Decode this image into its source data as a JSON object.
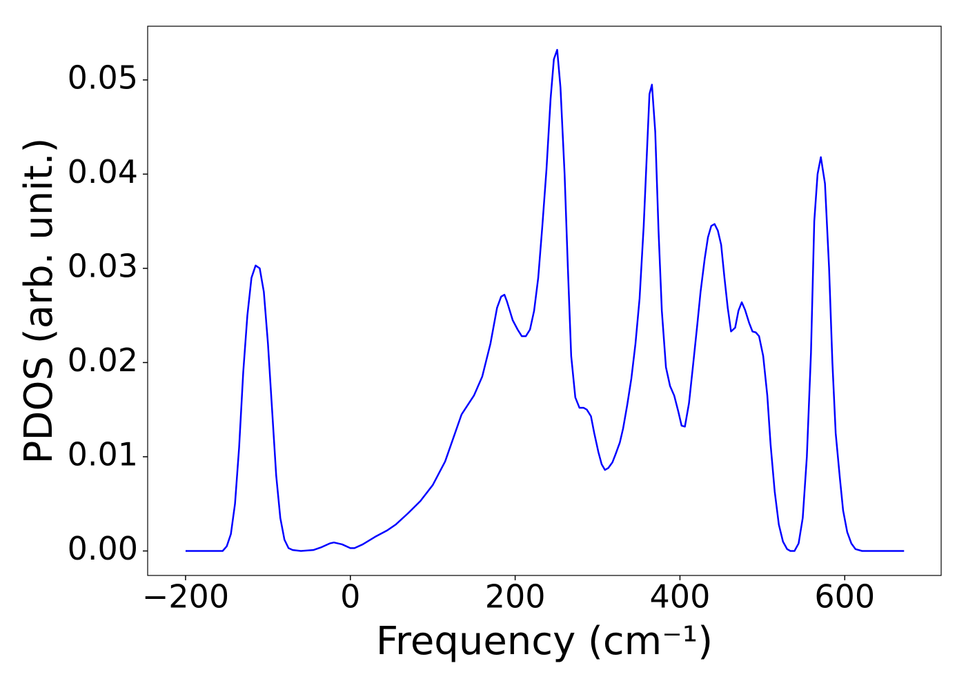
{
  "chart_data": {
    "type": "line",
    "xlabel": "Frequency (cm⁻¹)",
    "ylabel": "PDOS (arb. unit.)",
    "xlim": [
      -246,
      717
    ],
    "ylim": [
      -0.0026,
      0.0557
    ],
    "xticks": [
      {
        "value": -200,
        "label": "−200"
      },
      0,
      200,
      400,
      600
    ],
    "yticks": [
      {
        "value": 0,
        "label": "0.00"
      },
      {
        "value": 0.01,
        "label": "0.01"
      },
      {
        "value": 0.02,
        "label": "0.02"
      },
      {
        "value": 0.03,
        "label": "0.03"
      },
      {
        "value": 0.04,
        "label": "0.04"
      },
      {
        "value": 0.05,
        "label": "0.05"
      }
    ],
    "grid": false,
    "series": [
      {
        "color": "#0000ff",
        "x": [
          -200,
          -155,
          -150,
          -145,
          -140,
          -135,
          -130,
          -125,
          -120,
          -115,
          -110,
          -105,
          -100,
          -95,
          -90,
          -85,
          -80,
          -75,
          -70,
          -60,
          -45,
          -35,
          -25,
          -20,
          -10,
          0,
          5,
          15,
          30,
          45,
          55,
          70,
          85,
          100,
          115,
          125,
          135,
          150,
          160,
          170,
          178,
          183,
          187,
          190,
          197,
          203,
          208,
          213,
          218,
          223,
          228,
          233,
          238,
          243,
          247,
          251,
          255,
          260,
          264,
          268,
          273,
          278,
          283,
          287,
          292,
          296,
          301,
          305,
          309,
          313,
          318,
          322,
          327,
          331,
          336,
          341,
          346,
          351,
          356,
          360,
          363,
          366,
          370,
          374,
          378,
          383,
          388,
          393,
          398,
          402,
          406,
          411,
          416,
          421,
          425,
          430,
          434,
          438,
          442,
          446,
          450,
          454,
          458,
          462,
          467,
          471,
          475,
          479,
          484,
          488,
          492,
          496,
          501,
          506,
          510,
          515,
          520,
          525,
          530,
          534,
          539,
          544,
          549,
          554,
          559,
          563,
          567,
          571,
          576,
          581,
          585,
          589,
          594,
          598,
          603,
          608,
          613,
          621,
          672
        ],
        "values": [
          0,
          0,
          0.0005,
          0.0018,
          0.005,
          0.011,
          0.019,
          0.025,
          0.029,
          0.0303,
          0.03,
          0.0275,
          0.022,
          0.015,
          0.008,
          0.0035,
          0.0012,
          0.0003,
          0.0001,
          0,
          0.0001,
          0.0004,
          0.0008,
          0.0009,
          0.0007,
          0.0003,
          0.0003,
          0.0007,
          0.0015,
          0.0022,
          0.0028,
          0.004,
          0.0053,
          0.007,
          0.0095,
          0.012,
          0.0145,
          0.0165,
          0.0185,
          0.022,
          0.0258,
          0.027,
          0.0272,
          0.0265,
          0.0245,
          0.0235,
          0.0228,
          0.0228,
          0.0235,
          0.0255,
          0.029,
          0.0345,
          0.0405,
          0.048,
          0.0522,
          0.0532,
          0.0492,
          0.04,
          0.03,
          0.0207,
          0.0163,
          0.0152,
          0.0152,
          0.015,
          0.0143,
          0.0125,
          0.0105,
          0.0092,
          0.0086,
          0.0088,
          0.0094,
          0.0103,
          0.0115,
          0.013,
          0.0155,
          0.0183,
          0.022,
          0.0268,
          0.0345,
          0.0425,
          0.0485,
          0.0495,
          0.0445,
          0.034,
          0.0255,
          0.0195,
          0.0175,
          0.0165,
          0.0148,
          0.0133,
          0.0132,
          0.0157,
          0.0198,
          0.024,
          0.0275,
          0.031,
          0.0333,
          0.0345,
          0.0347,
          0.034,
          0.0325,
          0.029,
          0.0258,
          0.0233,
          0.0237,
          0.0255,
          0.0264,
          0.0256,
          0.0242,
          0.0233,
          0.0232,
          0.0228,
          0.0207,
          0.0165,
          0.0113,
          0.0063,
          0.0028,
          0.001,
          0.0002,
          0,
          0,
          0.0008,
          0.0035,
          0.01,
          0.021,
          0.035,
          0.04,
          0.0418,
          0.039,
          0.03,
          0.02,
          0.0125,
          0.0078,
          0.0043,
          0.002,
          0.0008,
          0.0002,
          0,
          0
        ]
      }
    ]
  }
}
